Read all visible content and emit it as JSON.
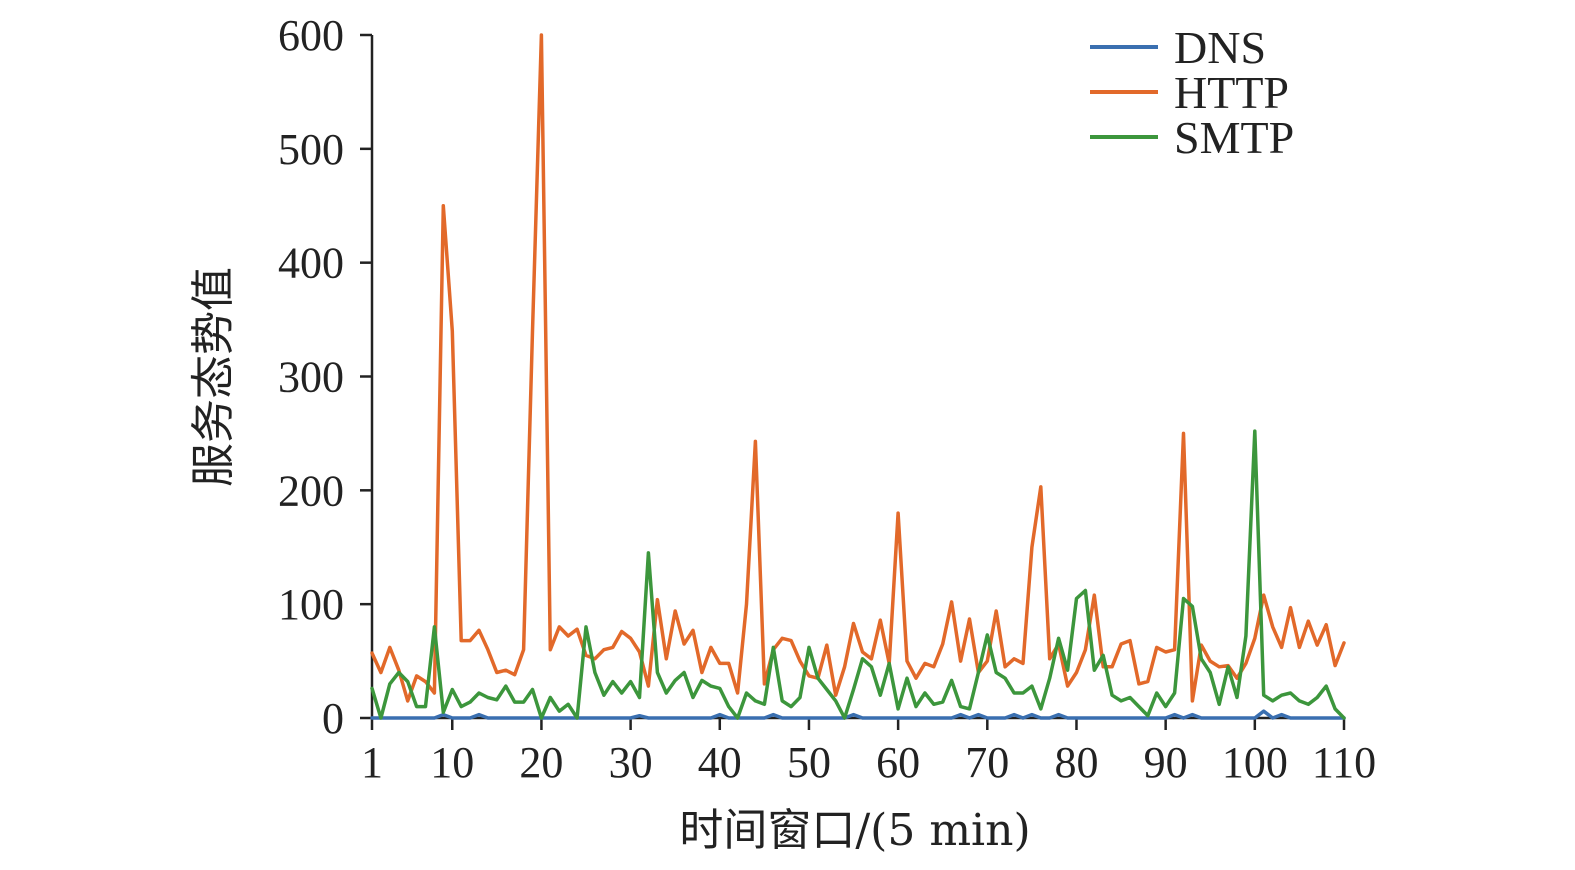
{
  "chart_data": {
    "type": "line",
    "title": "",
    "xlabel": "时间窗口/(5 min)",
    "ylabel": "服务态势值",
    "xlim": [
      1,
      110
    ],
    "ylim": [
      0,
      600
    ],
    "x_ticks": [
      1,
      10,
      20,
      30,
      40,
      50,
      60,
      70,
      80,
      90,
      100,
      110
    ],
    "y_ticks": [
      0,
      100,
      200,
      300,
      400,
      500,
      600
    ],
    "grid": false,
    "legend_position": "top-right",
    "x": [
      1,
      2,
      3,
      4,
      5,
      6,
      7,
      8,
      9,
      10,
      11,
      12,
      13,
      14,
      15,
      16,
      17,
      18,
      19,
      20,
      21,
      22,
      23,
      24,
      25,
      26,
      27,
      28,
      29,
      30,
      31,
      32,
      33,
      34,
      35,
      36,
      37,
      38,
      39,
      40,
      41,
      42,
      43,
      44,
      45,
      46,
      47,
      48,
      49,
      50,
      51,
      52,
      53,
      54,
      55,
      56,
      57,
      58,
      59,
      60,
      61,
      62,
      63,
      64,
      65,
      66,
      67,
      68,
      69,
      70,
      71,
      72,
      73,
      74,
      75,
      76,
      77,
      78,
      79,
      80,
      81,
      82,
      83,
      84,
      85,
      86,
      87,
      88,
      89,
      90,
      91,
      92,
      93,
      94,
      95,
      96,
      97,
      98,
      99,
      100,
      101,
      102,
      103,
      104,
      105,
      106,
      107,
      108,
      109,
      110
    ],
    "series": [
      {
        "name": "DNS",
        "color": "#3a6fb0",
        "values": [
          0,
          0,
          0,
          0,
          0,
          0,
          0,
          0,
          3,
          0,
          0,
          0,
          3,
          0,
          0,
          0,
          0,
          0,
          0,
          0,
          0,
          0,
          0,
          0,
          0,
          0,
          0,
          0,
          0,
          0,
          2,
          0,
          0,
          0,
          0,
          0,
          0,
          0,
          0,
          3,
          0,
          0,
          0,
          0,
          0,
          3,
          0,
          0,
          0,
          0,
          0,
          0,
          0,
          0,
          3,
          0,
          0,
          0,
          0,
          0,
          0,
          0,
          0,
          0,
          0,
          0,
          3,
          0,
          3,
          0,
          0,
          0,
          3,
          0,
          3,
          0,
          0,
          3,
          0,
          0,
          0,
          0,
          0,
          0,
          0,
          0,
          0,
          0,
          0,
          0,
          3,
          0,
          3,
          0,
          0,
          0,
          0,
          0,
          0,
          0,
          6,
          0,
          3,
          0,
          0,
          0,
          0,
          0,
          0,
          0
        ]
      },
      {
        "name": "HTTP",
        "color": "#e2692a",
        "values": [
          57,
          40,
          62,
          42,
          15,
          37,
          32,
          22,
          450,
          340,
          68,
          68,
          77,
          60,
          40,
          42,
          38,
          60,
          340,
          600,
          60,
          80,
          72,
          78,
          55,
          52,
          60,
          62,
          76,
          70,
          58,
          28,
          104,
          52,
          94,
          65,
          77,
          40,
          62,
          48,
          48,
          22,
          100,
          243,
          30,
          60,
          70,
          68,
          50,
          37,
          35,
          64,
          20,
          45,
          83,
          58,
          52,
          86,
          48,
          180,
          50,
          35,
          48,
          45,
          65,
          102,
          50,
          87,
          40,
          50,
          94,
          45,
          52,
          48,
          150,
          203,
          52,
          65,
          28,
          40,
          60,
          108,
          45,
          45,
          65,
          68,
          30,
          32,
          62,
          58,
          60,
          250,
          15,
          64,
          50,
          45,
          46,
          35,
          48,
          70,
          108,
          80,
          62,
          97,
          62,
          85,
          64,
          82,
          46,
          66
        ]
      },
      {
        "name": "SMTP",
        "color": "#3c963c",
        "values": [
          26,
          0,
          30,
          40,
          32,
          10,
          10,
          80,
          5,
          25,
          10,
          14,
          22,
          18,
          16,
          28,
          14,
          14,
          25,
          0,
          18,
          6,
          12,
          0,
          80,
          40,
          20,
          32,
          22,
          32,
          18,
          145,
          40,
          22,
          33,
          40,
          18,
          33,
          28,
          26,
          10,
          0,
          22,
          15,
          12,
          62,
          15,
          10,
          18,
          62,
          35,
          25,
          15,
          0,
          25,
          52,
          45,
          20,
          48,
          8,
          35,
          10,
          22,
          12,
          14,
          33,
          10,
          8,
          40,
          73,
          40,
          35,
          22,
          22,
          28,
          8,
          35,
          70,
          42,
          105,
          112,
          42,
          55,
          20,
          15,
          18,
          10,
          2,
          22,
          10,
          22,
          105,
          98,
          52,
          40,
          12,
          45,
          18,
          72,
          252,
          20,
          15,
          20,
          22,
          15,
          12,
          18,
          28,
          8,
          0
        ]
      }
    ]
  }
}
